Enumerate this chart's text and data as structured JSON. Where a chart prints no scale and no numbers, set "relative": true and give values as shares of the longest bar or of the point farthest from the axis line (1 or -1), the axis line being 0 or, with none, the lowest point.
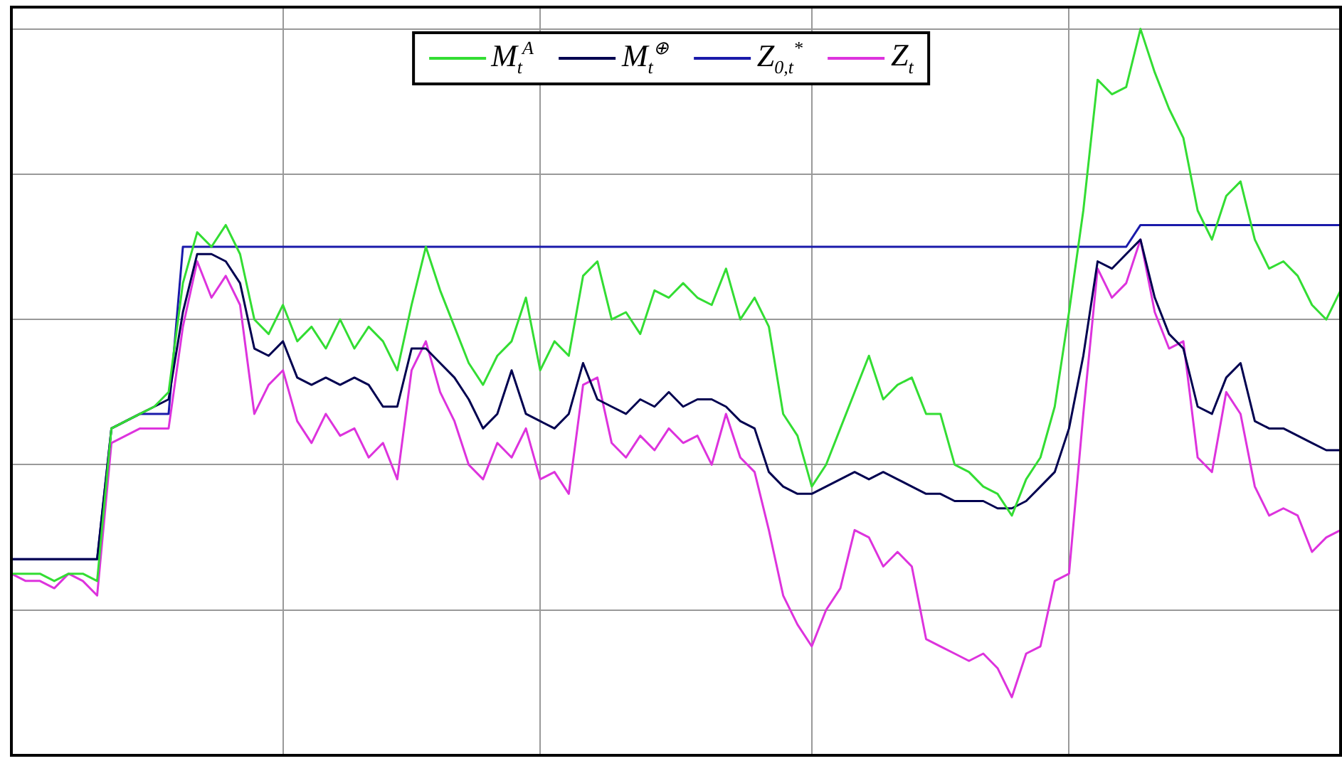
{
  "chart_data": {
    "type": "line",
    "relative": true,
    "grid": true,
    "legend": "top",
    "tick_labels": false,
    "line_style": "solid",
    "marker": "none",
    "categories": [
      null,
      null,
      null,
      null,
      null,
      null,
      null,
      null,
      null,
      null,
      null,
      null,
      null,
      null,
      null,
      null,
      null,
      null,
      null,
      null,
      null,
      null,
      null,
      null,
      null,
      null,
      null,
      null,
      null,
      null,
      null,
      null,
      null,
      null,
      null,
      null,
      null,
      null,
      null,
      null,
      null,
      null,
      null,
      null,
      null,
      null,
      null,
      null,
      null,
      null,
      null,
      null,
      null,
      null,
      null,
      null,
      null,
      null,
      null,
      null,
      null,
      null,
      null,
      null,
      null,
      null,
      null,
      null,
      null,
      null,
      null,
      null,
      null,
      null,
      null,
      null,
      null,
      null,
      null,
      null,
      null,
      null,
      null,
      null,
      null,
      null,
      null,
      null,
      null,
      null,
      null,
      null,
      null,
      null
    ],
    "series": [
      {
        "name": "M$_{t}$$^{A}$",
        "color": "#33dd33",
        "values": [
          0.25,
          0.25,
          0.25,
          0.24,
          0.25,
          0.25,
          0.24,
          0.45,
          0.46,
          0.47,
          0.48,
          0.5,
          0.65,
          0.72,
          0.7,
          0.73,
          0.69,
          0.6,
          0.58,
          0.62,
          0.57,
          0.59,
          0.56,
          0.6,
          0.56,
          0.59,
          0.57,
          0.53,
          0.62,
          0.7,
          0.64,
          0.59,
          0.54,
          0.51,
          0.55,
          0.57,
          0.63,
          0.53,
          0.57,
          0.55,
          0.66,
          0.68,
          0.6,
          0.61,
          0.58,
          0.64,
          0.63,
          0.65,
          0.63,
          0.62,
          0.67,
          0.6,
          0.63,
          0.59,
          0.47,
          0.44,
          0.37,
          0.4,
          0.45,
          0.5,
          0.55,
          0.49,
          0.51,
          0.52,
          0.47,
          0.47,
          0.4,
          0.39,
          0.37,
          0.36,
          0.33,
          0.38,
          0.41,
          0.48,
          0.61,
          0.75,
          0.93,
          0.91,
          0.92,
          1,
          0.94,
          0.89,
          0.85,
          0.75,
          0.71,
          0.77,
          0.79,
          0.71,
          0.67,
          0.68,
          0.66,
          0.62,
          0.6,
          0.64
        ]
      },
      {
        "name": "M$_{t}$$^{⊕}$",
        "color": "#000050",
        "values": [
          0.27,
          0.27,
          0.27,
          0.27,
          0.27,
          0.27,
          0.27,
          0.45,
          0.46,
          0.47,
          0.48,
          0.49,
          0.61,
          0.69,
          0.69,
          0.68,
          0.65,
          0.56,
          0.55,
          0.57,
          0.52,
          0.51,
          0.52,
          0.51,
          0.52,
          0.51,
          0.48,
          0.48,
          0.56,
          0.56,
          0.54,
          0.52,
          0.49,
          0.45,
          0.47,
          0.53,
          0.47,
          0.46,
          0.45,
          0.47,
          0.54,
          0.49,
          0.48,
          0.47,
          0.49,
          0.48,
          0.5,
          0.48,
          0.49,
          0.49,
          0.48,
          0.46,
          0.45,
          0.39,
          0.37,
          0.36,
          0.36,
          0.37,
          0.38,
          0.39,
          0.38,
          0.39,
          0.38,
          0.37,
          0.36,
          0.36,
          0.35,
          0.35,
          0.35,
          0.34,
          0.34,
          0.35,
          0.37,
          0.39,
          0.45,
          0.55,
          0.68,
          0.67,
          0.69,
          0.71,
          0.63,
          0.58,
          0.56,
          0.48,
          0.47,
          0.52,
          0.54,
          0.46,
          0.45,
          0.45,
          0.44,
          0.43,
          0.42,
          0.42
        ]
      },
      {
        "name": "Z$_{0,t}$$^{*}$",
        "color": "#1a1aaa",
        "values": [
          0.27,
          0.27,
          0.27,
          0.27,
          0.27,
          0.27,
          0.27,
          0.45,
          0.46,
          0.47,
          0.47,
          0.47,
          0.7,
          0.7,
          0.7,
          0.7,
          0.7,
          0.7,
          0.7,
          0.7,
          0.7,
          0.7,
          0.7,
          0.7,
          0.7,
          0.7,
          0.7,
          0.7,
          0.7,
          0.7,
          0.7,
          0.7,
          0.7,
          0.7,
          0.7,
          0.7,
          0.7,
          0.7,
          0.7,
          0.7,
          0.7,
          0.7,
          0.7,
          0.7,
          0.7,
          0.7,
          0.7,
          0.7,
          0.7,
          0.7,
          0.7,
          0.7,
          0.7,
          0.7,
          0.7,
          0.7,
          0.7,
          0.7,
          0.7,
          0.7,
          0.7,
          0.7,
          0.7,
          0.7,
          0.7,
          0.7,
          0.7,
          0.7,
          0.7,
          0.7,
          0.7,
          0.7,
          0.7,
          0.7,
          0.7,
          0.7,
          0.7,
          0.7,
          0.7,
          0.73,
          0.73,
          0.73,
          0.73,
          0.73,
          0.73,
          0.73,
          0.73,
          0.73,
          0.73,
          0.73,
          0.73,
          0.73,
          0.73,
          0.73
        ]
      },
      {
        "name": "Z$_{t}$",
        "color": "#dd33dd",
        "values": [
          0.25,
          0.24,
          0.24,
          0.23,
          0.25,
          0.24,
          0.22,
          0.43,
          0.44,
          0.45,
          0.45,
          0.45,
          0.59,
          0.68,
          0.63,
          0.66,
          0.62,
          0.47,
          0.51,
          0.53,
          0.46,
          0.43,
          0.47,
          0.44,
          0.45,
          0.41,
          0.43,
          0.38,
          0.53,
          0.57,
          0.5,
          0.46,
          0.4,
          0.38,
          0.43,
          0.41,
          0.45,
          0.38,
          0.39,
          0.36,
          0.51,
          0.52,
          0.43,
          0.41,
          0.44,
          0.42,
          0.45,
          0.43,
          0.44,
          0.4,
          0.47,
          0.41,
          0.39,
          0.31,
          0.22,
          0.18,
          0.15,
          0.2,
          0.23,
          0.31,
          0.3,
          0.26,
          0.28,
          0.26,
          0.16,
          0.15,
          0.14,
          0.13,
          0.14,
          0.12,
          0.08,
          0.14,
          0.15,
          0.24,
          0.25,
          0.47,
          0.67,
          0.63,
          0.65,
          0.71,
          0.61,
          0.56,
          0.57,
          0.41,
          0.39,
          0.5,
          0.47,
          0.37,
          0.33,
          0.34,
          0.33,
          0.28,
          0.3,
          0.31
        ]
      }
    ]
  }
}
